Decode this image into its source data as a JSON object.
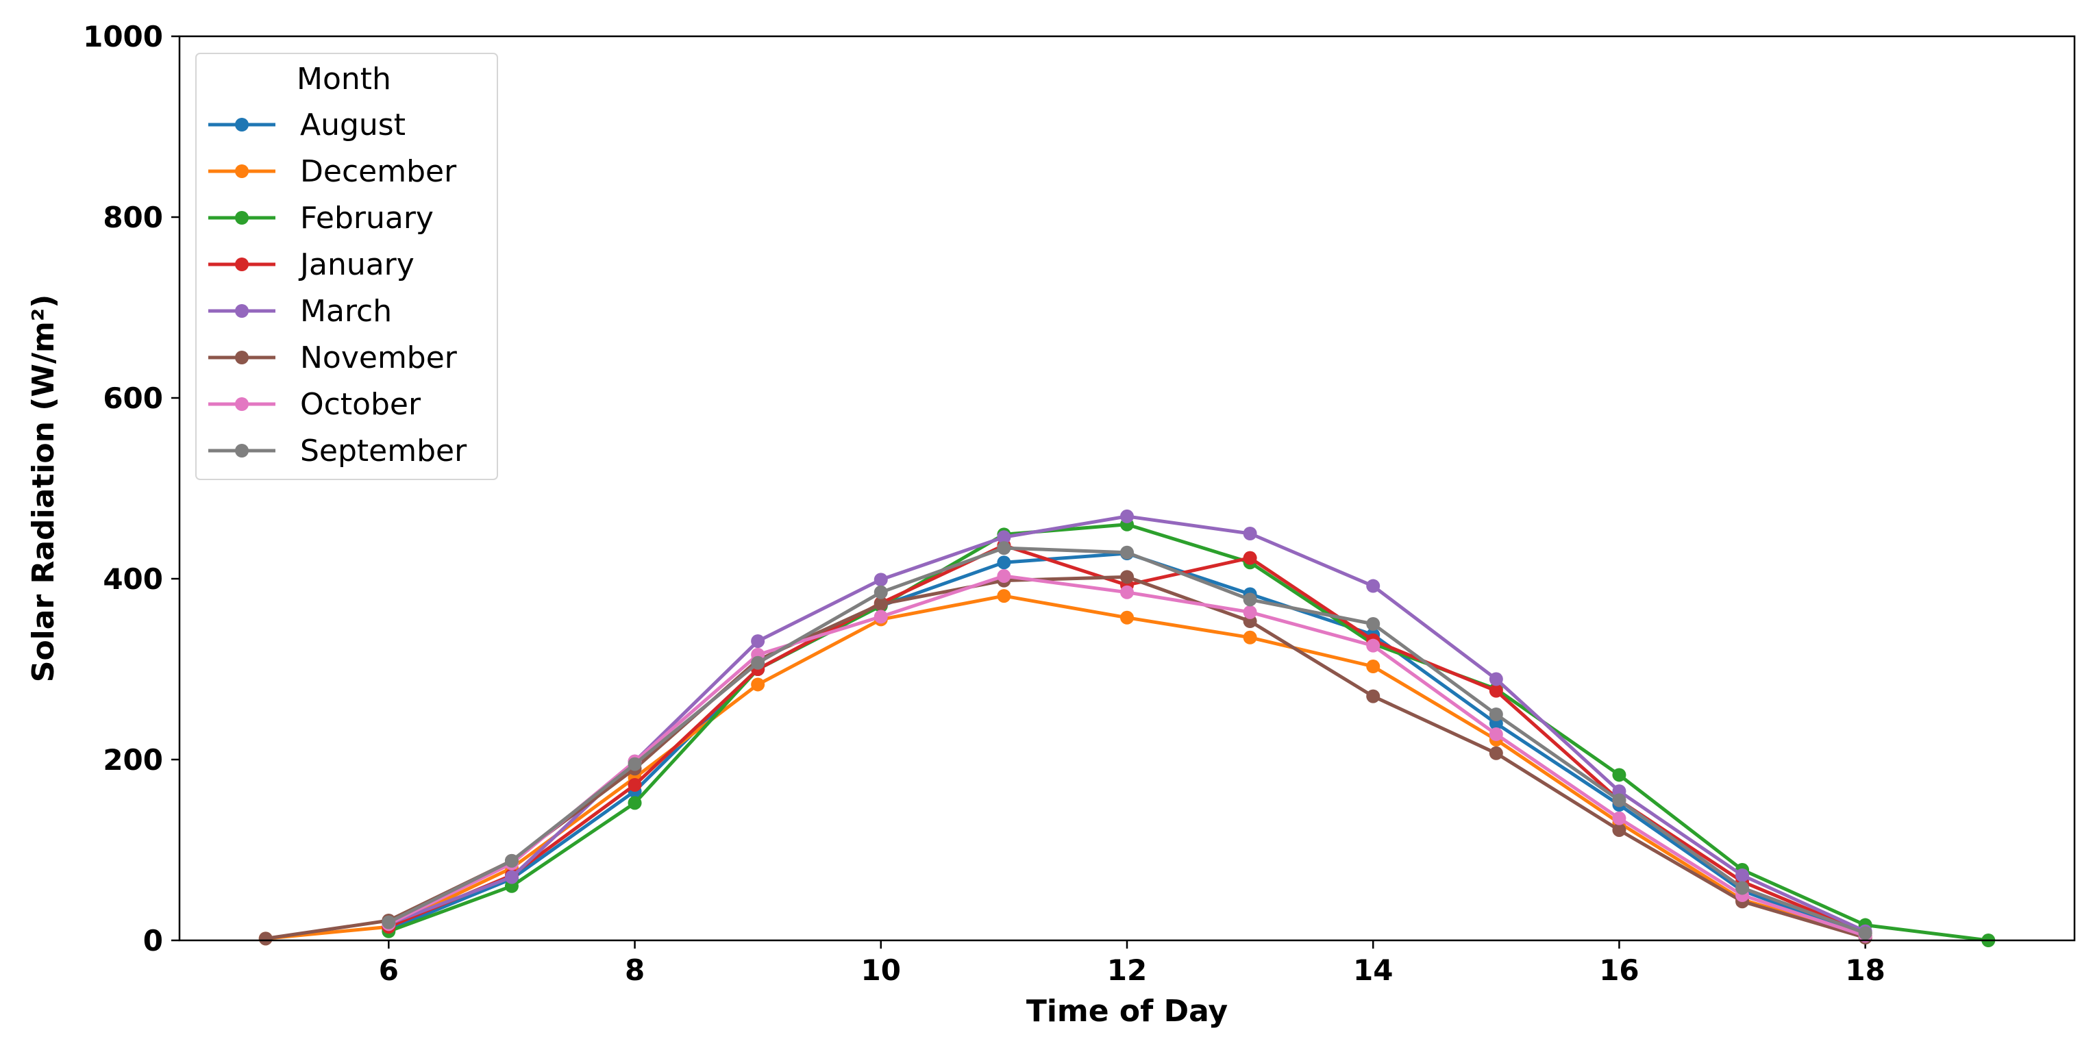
{
  "chart_data": {
    "type": "line",
    "title": "",
    "xlabel": "Time of Day",
    "ylabel": "Solar Radiation (W/m²)",
    "xlim": [
      4.3,
      19.7
    ],
    "ylim": [
      0,
      1000
    ],
    "xticks": [
      6,
      8,
      10,
      12,
      14,
      16,
      18
    ],
    "yticks": [
      0,
      200,
      400,
      600,
      800,
      1000
    ],
    "grid": false,
    "legend": {
      "title": "Month",
      "position": "top-left"
    },
    "series": [
      {
        "name": "August",
        "color": "#1f77b4",
        "x": [
          6,
          7,
          8,
          9,
          10,
          11,
          12,
          13,
          14,
          15,
          16,
          17,
          18
        ],
        "y": [
          12,
          68,
          165,
          300,
          370,
          418,
          428,
          383,
          338,
          240,
          150,
          55,
          5
        ]
      },
      {
        "name": "December",
        "color": "#ff7f0e",
        "x": [
          5,
          6,
          7,
          8,
          9,
          10,
          11,
          12,
          13,
          14,
          15,
          16,
          17,
          18
        ],
        "y": [
          2,
          15,
          80,
          180,
          283,
          355,
          381,
          357,
          335,
          303,
          222,
          130,
          45,
          5
        ]
      },
      {
        "name": "February",
        "color": "#2ca02c",
        "x": [
          6,
          7,
          8,
          9,
          10,
          11,
          12,
          13,
          14,
          15,
          16,
          17,
          18,
          19
        ],
        "y": [
          10,
          60,
          152,
          300,
          370,
          449,
          460,
          418,
          328,
          278,
          183,
          78,
          17,
          0
        ]
      },
      {
        "name": "January",
        "color": "#d62728",
        "x": [
          6,
          7,
          8,
          9,
          10,
          11,
          12,
          13,
          14,
          15,
          16,
          17,
          18
        ],
        "y": [
          15,
          72,
          172,
          300,
          373,
          437,
          393,
          423,
          332,
          276,
          155,
          65,
          8
        ]
      },
      {
        "name": "March",
        "color": "#9467bd",
        "x": [
          6,
          7,
          8,
          9,
          10,
          11,
          12,
          13,
          14,
          15,
          16,
          17,
          18
        ],
        "y": [
          18,
          70,
          198,
          331,
          399,
          446,
          469,
          450,
          392,
          289,
          165,
          72,
          10
        ]
      },
      {
        "name": "November",
        "color": "#8c564b",
        "x": [
          5,
          6,
          7,
          8,
          9,
          10,
          11,
          12,
          13,
          14,
          15,
          16,
          17,
          18
        ],
        "y": [
          2,
          22,
          88,
          190,
          310,
          372,
          398,
          402,
          353,
          270,
          207,
          122,
          43,
          3
        ]
      },
      {
        "name": "October",
        "color": "#e377c2",
        "x": [
          6,
          7,
          8,
          9,
          10,
          11,
          12,
          13,
          14,
          15,
          16,
          17,
          18
        ],
        "y": [
          18,
          85,
          198,
          316,
          358,
          403,
          385,
          363,
          326,
          228,
          135,
          50,
          5
        ]
      },
      {
        "name": "September",
        "color": "#7f7f7f",
        "x": [
          6,
          7,
          8,
          9,
          10,
          11,
          12,
          13,
          14,
          15,
          16,
          17,
          18
        ],
        "y": [
          20,
          88,
          195,
          307,
          385,
          434,
          429,
          377,
          350,
          250,
          155,
          58,
          8
        ]
      }
    ]
  }
}
